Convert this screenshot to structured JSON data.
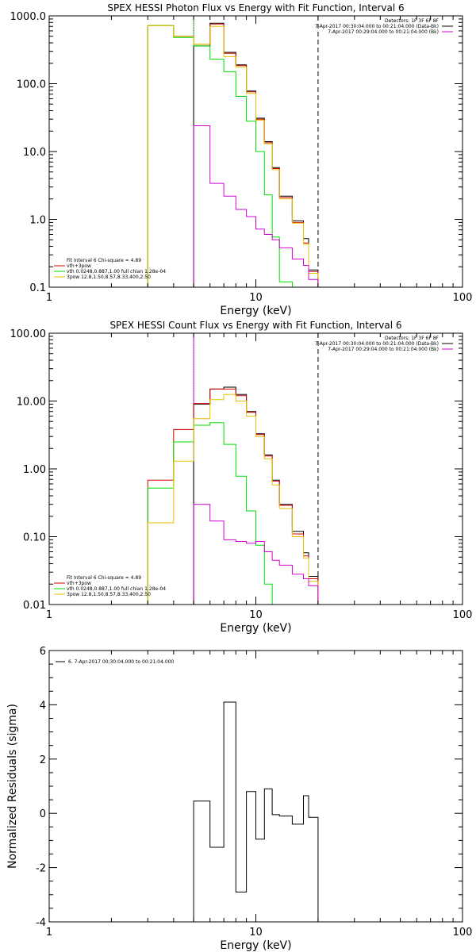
{
  "chart_data": [
    {
      "type": "line",
      "title": "SPEX HESSI Photon Flux vs Energy with Fit Function, Interval 6",
      "xlabel": "Energy (keV)",
      "ylabel": "",
      "x_scale": "log",
      "y_scale": "log",
      "xlim": [
        1,
        100
      ],
      "ylim": [
        0.1,
        1000
      ],
      "x_ticks": [
        1,
        10,
        100
      ],
      "x_tick_labels": [
        "1",
        "10",
        "100"
      ],
      "y_ticks": [
        0.1,
        1,
        10,
        100,
        1000
      ],
      "y_tick_labels": [
        "0.1",
        "1.0",
        "10.0",
        "100.0",
        "1000.0"
      ],
      "header_lines": [
        "Detectors: 1F 3F 6F 8F",
        "7-Apr-2017 00:30:04.000 to 00:21:04.000 (Data-Bk)",
        "7-Apr-2017 00:29:04.000 to 00:21:04.000 (Bk)"
      ],
      "header_colors": [
        "",
        "#000000",
        "#d400d4"
      ],
      "legend_lines": [
        "Fit Interval 6   Chi-square = 4.89",
        "vth+3pow",
        "vth 0.0248,0.887,1.00  full chian 1.28e-04",
        "3pow 12.8,1.50,8.57,8.33,400,2.50"
      ],
      "legend_colors": [
        "",
        "#d40000",
        "#00dd00",
        "#e6c200"
      ],
      "vlines": [
        {
          "x": 5.0,
          "style": "solid",
          "color": "#00dd00"
        },
        {
          "x": 5.0,
          "style": "dotted",
          "color": "#d400d4"
        },
        {
          "x": 20.0,
          "style": "dashed",
          "color": "#000000"
        }
      ],
      "edges": [
        3.0,
        4.0,
        5.0,
        6.0,
        7.0,
        8.0,
        9.0,
        10.0,
        11.0,
        12.0,
        13.0,
        15.0,
        17.0,
        18.0,
        20.0,
        21.0
      ],
      "series": [
        {
          "color": "#000000",
          "values": [
            null,
            null,
            360,
            780,
            290,
            190,
            78,
            31,
            14,
            5.8,
            2.2,
            0.95,
            0.52,
            0.18,
            null
          ]
        },
        {
          "color": "#d40000",
          "values": [
            720,
            500,
            380,
            760,
            280,
            185,
            76,
            30,
            13.5,
            5.6,
            2.1,
            0.9,
            0.45,
            0.17,
            null
          ]
        },
        {
          "color": "#00dd00",
          "values": [
            720,
            480,
            360,
            230,
            150,
            65,
            28,
            10,
            2.3,
            0.55,
            0.12,
            null,
            null,
            null,
            null
          ]
        },
        {
          "color": "#e6c200",
          "values": [
            720,
            500,
            380,
            700,
            250,
            175,
            72,
            29,
            13,
            5.4,
            2.0,
            0.88,
            0.43,
            0.16,
            null
          ]
        },
        {
          "color": "#d400d4",
          "values": [
            null,
            null,
            24,
            3.4,
            2.2,
            1.4,
            1.1,
            0.72,
            0.6,
            0.5,
            0.38,
            0.26,
            0.21,
            0.13,
            null
          ]
        }
      ]
    },
    {
      "type": "line",
      "title": "SPEX HESSI Count Flux vs Energy with Fit Function, Interval 6",
      "xlabel": "Energy (keV)",
      "ylabel": "",
      "x_scale": "log",
      "y_scale": "log",
      "xlim": [
        1,
        100
      ],
      "ylim": [
        0.01,
        100
      ],
      "x_ticks": [
        1,
        10,
        100
      ],
      "x_tick_labels": [
        "1",
        "10",
        "100"
      ],
      "y_ticks": [
        0.01,
        0.1,
        1,
        10,
        100
      ],
      "y_tick_labels": [
        "0.01",
        "0.10",
        "1.00",
        "10.00",
        "100.00"
      ],
      "header_lines": [
        "Detectors: 1F 3F 6F 8F",
        "7-Apr-2017 00:30:04.000 to 00:21:04.000 (Data-Bk)",
        "7-Apr-2017 00:29:04.000 to 00:21:04.000 (Bk)"
      ],
      "header_colors": [
        "",
        "#000000",
        "#d400d4"
      ],
      "legend_lines": [
        "Fit Interval 6   Chi-square = 4.89",
        "vth+3pow",
        "vth 0.0248,0.887,1.00  full chian 1.28e-04",
        "3pow 12.8,1.50,8.57,8.33,400,2.50"
      ],
      "legend_colors": [
        "",
        "#d40000",
        "#00dd00",
        "#e6c200"
      ],
      "vlines": [
        {
          "x": 5.0,
          "style": "dotted",
          "color": "#000000"
        },
        {
          "x": 5.0,
          "style": "solid",
          "color": "#d400d4"
        },
        {
          "x": 20.0,
          "style": "dashed",
          "color": "#000000"
        }
      ],
      "edges": [
        3.0,
        4.0,
        5.0,
        6.0,
        7.0,
        8.0,
        9.0,
        10.0,
        11.0,
        12.0,
        13.0,
        15.0,
        17.0,
        18.0,
        20.0,
        21.0
      ],
      "series": [
        {
          "color": "#000000",
          "values": [
            null,
            null,
            9.0,
            15.0,
            16.0,
            12.5,
            7.0,
            3.3,
            1.6,
            0.68,
            0.3,
            0.12,
            0.058,
            0.026,
            null
          ]
        },
        {
          "color": "#d40000",
          "values": [
            0.68,
            3.8,
            9.2,
            15.0,
            15.0,
            12.0,
            6.8,
            3.2,
            1.55,
            0.66,
            0.29,
            0.11,
            0.052,
            0.024,
            null
          ]
        },
        {
          "color": "#00dd00",
          "values": [
            0.52,
            2.5,
            4.4,
            4.8,
            2.3,
            0.78,
            0.24,
            0.075,
            0.02,
            null,
            null,
            null,
            null,
            null,
            null
          ]
        },
        {
          "color": "#e6c200",
          "values": [
            0.16,
            1.3,
            5.5,
            10.5,
            12.5,
            10.0,
            6.0,
            3.0,
            1.4,
            0.58,
            0.26,
            0.1,
            0.048,
            0.022,
            null
          ]
        },
        {
          "color": "#d400d4",
          "values": [
            null,
            null,
            0.3,
            0.17,
            0.09,
            0.085,
            0.08,
            0.085,
            0.06,
            0.045,
            0.038,
            0.028,
            0.024,
            0.019,
            null
          ]
        }
      ]
    },
    {
      "type": "line",
      "title": "",
      "xlabel": "Energy (keV)",
      "ylabel": "Normalized Residuals (sigma)",
      "x_scale": "log",
      "y_scale": "linear",
      "xlim": [
        1,
        100
      ],
      "ylim": [
        -4,
        6
      ],
      "x_ticks": [
        1,
        10,
        100
      ],
      "x_tick_labels": [
        "1",
        "10",
        "100"
      ],
      "y_ticks": [
        -4,
        -2,
        0,
        2,
        4,
        6
      ],
      "y_tick_labels": [
        "-4",
        "-2",
        "0",
        "2",
        "4",
        "6"
      ],
      "legend_lines": [
        "6.  7-Apr-2017 00:30:04.000 to 00:21:04.000"
      ],
      "legend_colors": [
        "#000000"
      ],
      "edges": [
        5.0,
        6.0,
        7.0,
        8.0,
        9.0,
        10.0,
        11.0,
        12.0,
        13.0,
        15.0,
        17.0,
        18.0,
        20.0
      ],
      "series": [
        {
          "color": "#000000",
          "values": [
            0.45,
            -1.25,
            4.1,
            -2.9,
            0.8,
            -0.95,
            0.9,
            -0.05,
            -0.1,
            -0.4,
            0.65,
            -0.15
          ]
        }
      ]
    }
  ]
}
